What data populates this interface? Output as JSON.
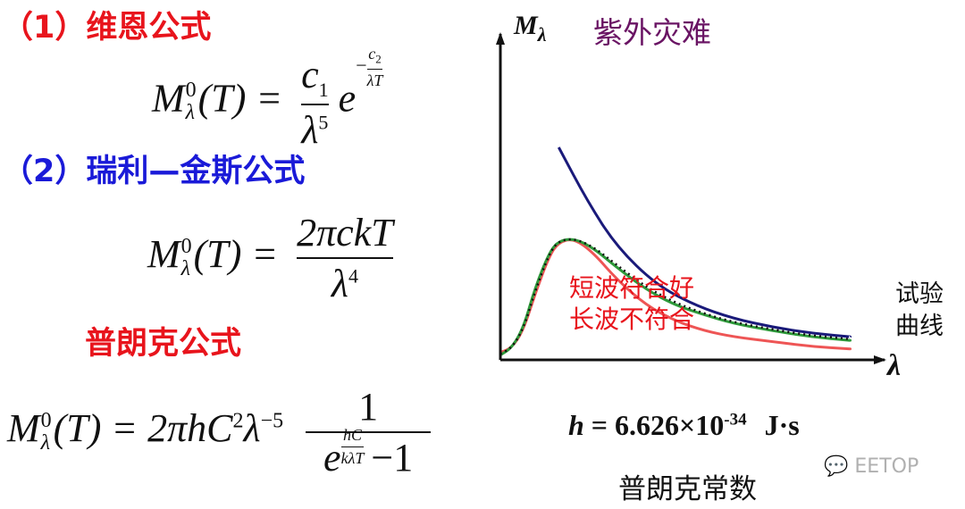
{
  "wien": {
    "heading": "（1）维恩公式",
    "lhs": "M",
    "lhs_sup": "0",
    "lhs_sub": "λ",
    "arg": "(T) =",
    "num": "c",
    "num_sub": "1",
    "den": "λ",
    "den_sup": "5",
    "exp_base": "e",
    "exp_sign": "−",
    "exp_num": "c",
    "exp_num_sub": "2",
    "exp_den": "λT"
  },
  "rayleigh": {
    "heading": "（2）瑞利—金斯公式",
    "lhs": "M",
    "lhs_sup": "0",
    "lhs_sub": "λ",
    "arg": "(T) =",
    "num": "2πckT",
    "den": "λ",
    "den_sup": "4"
  },
  "planck": {
    "heading": "普朗克公式",
    "lhs": "M",
    "lhs_sup": "0",
    "lhs_sub": "λ",
    "arg": "(T) = 2πhC",
    "c_sup": "2",
    "lambda": "λ",
    "lambda_sup": "−5",
    "num": "1",
    "den_base": "e",
    "den_exp_num": "hC",
    "den_exp_den": "kλT",
    "den_tail": "−1"
  },
  "constant": {
    "symbol": "h",
    "value": "= 6.626×10",
    "exponent": "-34",
    "unit": "J·s",
    "caption": "普朗克常数"
  },
  "watermark": {
    "text": "EETOP"
  },
  "chart_data": {
    "type": "line",
    "title": "",
    "xlabel": "λ",
    "ylabel": "M",
    "ylabel_sub": "λ",
    "annotations": {
      "uv_catastrophe": "紫外灾难",
      "short_wave": "短波符合好",
      "long_wave": "长波不符合",
      "experiment_line1": "试验",
      "experiment_line2": "曲线"
    },
    "grid": false,
    "series": [
      {
        "name": "",
        "color": "#1a1a7a",
        "style": "solid",
        "x": [
          0.3,
          0.45,
          0.6,
          0.8,
          1.0,
          1.2,
          1.4,
          1.6,
          1.8
        ],
        "y": [
          1.75,
          1.3,
          0.93,
          0.62,
          0.45,
          0.34,
          0.27,
          0.22,
          0.19
        ]
      },
      {
        "name": "",
        "color": "#ee5555",
        "style": "solid",
        "x": [
          0.0,
          0.06,
          0.12,
          0.18,
          0.25,
          0.3,
          0.38,
          0.48,
          0.6,
          0.75,
          0.9,
          1.05,
          1.2,
          1.4,
          1.6,
          1.8
        ],
        "y": [
          0.06,
          0.1,
          0.25,
          0.55,
          0.85,
          0.97,
          1.0,
          0.88,
          0.66,
          0.45,
          0.32,
          0.24,
          0.19,
          0.15,
          0.11,
          0.09
        ]
      },
      {
        "name": "",
        "color": "#2e9a3a",
        "style": "solid",
        "x": [
          0.0,
          0.06,
          0.12,
          0.18,
          0.25,
          0.3,
          0.38,
          0.48,
          0.6,
          0.75,
          0.9,
          1.05,
          1.2,
          1.4,
          1.6,
          1.8
        ],
        "y": [
          0.04,
          0.1,
          0.27,
          0.6,
          0.88,
          0.98,
          1.0,
          0.92,
          0.76,
          0.58,
          0.45,
          0.37,
          0.3,
          0.24,
          0.19,
          0.16
        ]
      },
      {
        "name": "",
        "color": "#111111",
        "style": "dotted",
        "x": [
          0.0,
          0.06,
          0.12,
          0.18,
          0.25,
          0.3,
          0.38,
          0.48,
          0.6,
          0.75,
          0.9,
          1.05,
          1.2,
          1.4,
          1.6,
          1.8
        ],
        "y": [
          0.05,
          0.1,
          0.26,
          0.57,
          0.87,
          0.98,
          1.0,
          0.93,
          0.78,
          0.6,
          0.47,
          0.38,
          0.31,
          0.25,
          0.2,
          0.17
        ]
      }
    ],
    "xlim": [
      0,
      2.0
    ],
    "ylim": [
      0,
      2.5
    ]
  },
  "colors": {
    "wien_heading": "#e8141c",
    "rayleigh_heading": "#1a1ad8",
    "planck_heading": "#e8141c",
    "uv_catastrophe": "#6a1464",
    "red_note": "#e8141c",
    "axis": "#111111"
  }
}
